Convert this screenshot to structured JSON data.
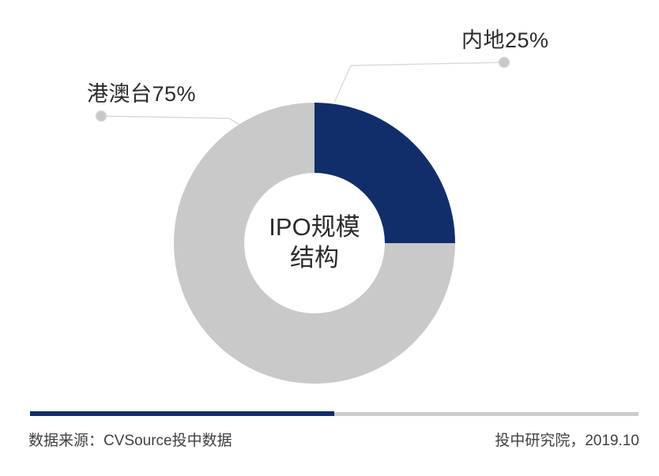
{
  "chart_data": {
    "type": "pie",
    "subtype": "donut",
    "title": "IPO规模结构",
    "center_label_lines": [
      "IPO规模",
      "结构"
    ],
    "slices": [
      {
        "label": "内地",
        "value": 25,
        "display": "内地25%",
        "color": "#112e6a"
      },
      {
        "label": "港澳台",
        "value": 75,
        "display": "港澳台75%",
        "color": "#c9c9c9"
      }
    ],
    "start_angle_deg": 0,
    "direction": "clockwise",
    "legend_position": "callout-labels"
  },
  "footer": {
    "source": "数据来源：CVSource投中数据",
    "attribution": "投中研究院，2019.10"
  },
  "colors": {
    "accent_navy": "#112e6a",
    "slice_gray": "#c9c9c9",
    "leader_line": "#d9d9d9",
    "callout_dot": "#c8c8c8",
    "divider_gray": "#cccccc",
    "text_dark": "#2b2b2b",
    "text_footer": "#404040"
  }
}
